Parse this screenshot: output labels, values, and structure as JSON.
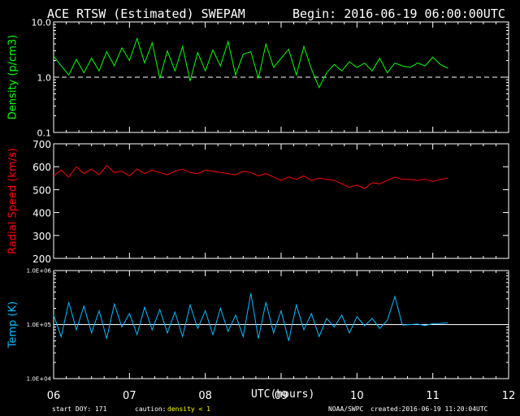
{
  "header": {
    "title": "ACE RTSW (Estimated) SWEPAM",
    "begin": "Begin: 2016-06-19 06:00:00UTC"
  },
  "footer": {
    "start_doy": "start DOY: 171",
    "caution_prefix": "caution:",
    "caution_highlight": "density < 1",
    "source": "NOAA/SWPC",
    "created": "created:2016-06-19 11:20:04UTC"
  },
  "colors": {
    "background": "#000000",
    "axes": "#ffffff",
    "density": "#00ff00",
    "speed": "#ff0000",
    "temp": "#00bbff",
    "caution": "#ffff00"
  },
  "chart_data": [
    {
      "type": "line",
      "ylabel": "Density (p/cm3)",
      "yscale": "log",
      "ylim": [
        0.1,
        10.0
      ],
      "yticks": [
        "10.0",
        "1.0",
        "0.1"
      ],
      "reference_line": 1.0,
      "reference_style": "dashed",
      "xlim": [
        6,
        12
      ],
      "series": [
        {
          "x": [
            6.0,
            6.1,
            6.2,
            6.3,
            6.4,
            6.5,
            6.6,
            6.7,
            6.8,
            6.9,
            7.0,
            7.1,
            7.2,
            7.3,
            7.4,
            7.5,
            7.6,
            7.7,
            7.8,
            7.9,
            8.0,
            8.1,
            8.2,
            8.3,
            8.4,
            8.5,
            8.6,
            8.7,
            8.8,
            8.9,
            9.0,
            9.1,
            9.2,
            9.3,
            9.4,
            9.5,
            9.6,
            9.7,
            9.8,
            9.9,
            10.0,
            10.1,
            10.2,
            10.3,
            10.4,
            10.5,
            10.6,
            10.7,
            10.8,
            10.9,
            11.0,
            11.1,
            11.2
          ],
          "values": [
            2.4,
            1.6,
            1.1,
            2.1,
            1.2,
            2.2,
            1.3,
            2.9,
            1.6,
            3.4,
            2.0,
            5.0,
            1.8,
            4.2,
            0.95,
            3.0,
            1.3,
            3.6,
            0.85,
            2.8,
            1.3,
            3.1,
            1.6,
            4.4,
            1.1,
            2.6,
            2.9,
            0.95,
            4.0,
            1.5,
            2.2,
            3.2,
            1.1,
            3.6,
            1.4,
            0.65,
            1.2,
            1.7,
            1.3,
            1.9,
            1.5,
            1.8,
            1.3,
            2.2,
            1.2,
            1.8,
            1.6,
            1.5,
            1.8,
            1.6,
            2.3,
            1.7,
            1.45
          ]
        }
      ]
    },
    {
      "type": "line",
      "ylabel": "Radial Speed (km/s)",
      "ylim": [
        200,
        700
      ],
      "yticks": [
        "700",
        "600",
        "500",
        "400",
        "300",
        "200"
      ],
      "xlim": [
        6,
        12
      ],
      "series": [
        {
          "x": [
            6.0,
            6.1,
            6.2,
            6.3,
            6.4,
            6.5,
            6.6,
            6.7,
            6.8,
            6.9,
            7.0,
            7.1,
            7.2,
            7.3,
            7.4,
            7.5,
            7.6,
            7.7,
            7.8,
            7.9,
            8.0,
            8.1,
            8.2,
            8.3,
            8.4,
            8.5,
            8.6,
            8.7,
            8.8,
            8.9,
            9.0,
            9.1,
            9.2,
            9.3,
            9.4,
            9.5,
            9.6,
            9.7,
            9.8,
            9.9,
            10.0,
            10.1,
            10.2,
            10.3,
            10.4,
            10.5,
            10.6,
            10.7,
            10.8,
            10.9,
            11.0,
            11.1,
            11.2
          ],
          "values": [
            560,
            585,
            555,
            600,
            570,
            590,
            565,
            605,
            575,
            580,
            560,
            590,
            570,
            585,
            575,
            565,
            580,
            590,
            575,
            570,
            585,
            580,
            575,
            570,
            565,
            580,
            575,
            560,
            570,
            555,
            540,
            555,
            545,
            560,
            540,
            550,
            545,
            540,
            525,
            510,
            520,
            505,
            530,
            525,
            540,
            555,
            545,
            545,
            540,
            545,
            535,
            545,
            550
          ]
        }
      ]
    },
    {
      "type": "line",
      "ylabel": "Temp (K)",
      "yscale": "log",
      "ylim": [
        10000,
        1000000
      ],
      "yticks": [
        "1.0E+06",
        "1.0E+05",
        "1.0E+04"
      ],
      "reference_line": 100000,
      "reference_style": "solid",
      "xlim": [
        6,
        12
      ],
      "xticks": [
        "06",
        "07",
        "08",
        "09",
        "10",
        "11",
        "12"
      ],
      "xlabel": "UTC(hours)",
      "series": [
        {
          "x": [
            6.0,
            6.1,
            6.2,
            6.3,
            6.4,
            6.5,
            6.6,
            6.7,
            6.8,
            6.9,
            7.0,
            7.1,
            7.2,
            7.3,
            7.4,
            7.5,
            7.6,
            7.7,
            7.8,
            7.9,
            8.0,
            8.1,
            8.2,
            8.3,
            8.4,
            8.5,
            8.6,
            8.7,
            8.8,
            8.9,
            9.0,
            9.1,
            9.2,
            9.3,
            9.4,
            9.5,
            9.6,
            9.7,
            9.8,
            9.9,
            10.0,
            10.1,
            10.2,
            10.3,
            10.4,
            10.5,
            10.6,
            10.7,
            10.8,
            10.9,
            11.0,
            11.1,
            11.2
          ],
          "values": [
            150000,
            60000,
            260000,
            80000,
            220000,
            70000,
            180000,
            55000,
            240000,
            90000,
            160000,
            65000,
            210000,
            80000,
            190000,
            70000,
            170000,
            60000,
            230000,
            85000,
            180000,
            65000,
            200000,
            75000,
            150000,
            60000,
            380000,
            55000,
            260000,
            70000,
            180000,
            50000,
            230000,
            80000,
            160000,
            60000,
            130000,
            90000,
            150000,
            70000,
            140000,
            95000,
            130000,
            85000,
            120000,
            330000,
            98000,
            100000,
            102000,
            96000,
            104000,
            105000,
            108000
          ]
        }
      ]
    }
  ]
}
